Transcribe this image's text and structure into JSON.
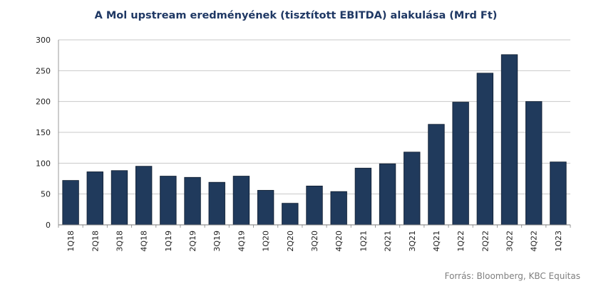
{
  "chart_data": {
    "type": "bar",
    "title": "A Mol upstream eredményének  (tisztított EBITDA) alakulása (Mrd Ft)",
    "xlabel": "",
    "ylabel": "",
    "categories": [
      "1Q18",
      "2Q18",
      "3Q18",
      "4Q18",
      "1Q19",
      "2Q19",
      "3Q19",
      "4Q19",
      "1Q20",
      "2Q20",
      "3Q20",
      "4Q20",
      "1Q21",
      "2Q21",
      "3Q21",
      "4Q21",
      "1Q22",
      "2Q22",
      "3Q22",
      "4Q22",
      "1Q23"
    ],
    "values": [
      72,
      86,
      88,
      95,
      79,
      77,
      69,
      79,
      56,
      35,
      63,
      54,
      92,
      99,
      118,
      163,
      199,
      246,
      276,
      200,
      102
    ],
    "ylim": [
      0,
      300
    ],
    "yticks": [
      0,
      50,
      100,
      150,
      200,
      250,
      300
    ],
    "grid": true,
    "bar_color": "#203a5c"
  },
  "source": "Forrás: Bloomberg,  KBC Equitas"
}
